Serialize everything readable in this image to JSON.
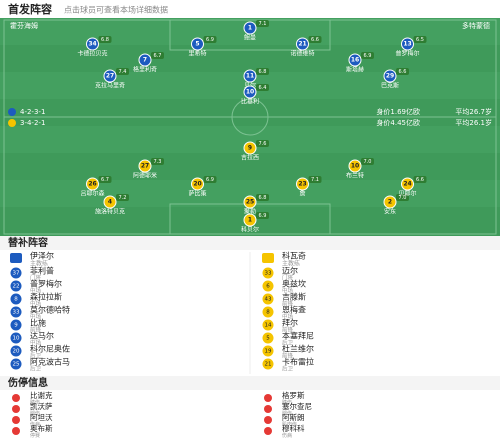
{
  "header": {
    "title": "首发阵容",
    "subtitle": "点击球员可查看本场详细数据"
  },
  "home": {
    "name": "霍芬海姆",
    "formation": "4-2-3-1",
    "value": "身价1.69亿欧",
    "age": "平均26.7岁",
    "rows": [
      [
        {
          "num": "1",
          "name": "鲍曼",
          "rating": "7.1"
        }
      ],
      [
        {
          "num": "34",
          "name": "卡德拉贝克",
          "rating": "6.8"
        },
        {
          "num": "5",
          "name": "里希特",
          "rating": "6.9"
        },
        {
          "num": "21",
          "name": "诺德维特",
          "rating": "6.6"
        },
        {
          "num": "13",
          "name": "普罗梅尔",
          "rating": "6.5"
        }
      ],
      [
        {
          "num": "7",
          "name": "格里利奇",
          "rating": "6.7"
        },
        {
          "num": "16",
          "name": "斯塔赫",
          "rating": "6.9"
        }
      ],
      [
        {
          "num": "27",
          "name": "克拉马里奇",
          "rating": "7.4"
        },
        {
          "num": "11",
          "name": "贝尔",
          "rating": "6.8"
        },
        {
          "num": "29",
          "name": "巴克斯",
          "rating": "6.6"
        }
      ],
      [
        {
          "num": "10",
          "name": "比基利",
          "rating": "6.4"
        }
      ]
    ],
    "coach_label": "主教练",
    "coach": "伊泽尔",
    "subs": [
      {
        "num": "37",
        "name": "菲利普",
        "pos": "门将"
      },
      {
        "num": "22",
        "name": "普罗梅尔",
        "pos": "中场"
      },
      {
        "num": "8",
        "name": "森拉拉斯",
        "pos": "中场"
      },
      {
        "num": "33",
        "name": "莫尔德哈特",
        "pos": "中场"
      },
      {
        "num": "9",
        "name": "比施",
        "pos": "前锋"
      },
      {
        "num": "10",
        "name": "达马尔",
        "pos": "中场"
      },
      {
        "num": "20",
        "name": "科尔尼奥佐",
        "pos": "后卫"
      },
      {
        "num": "25",
        "name": "阿克波古马",
        "pos": "后卫"
      }
    ],
    "injuries": [
      {
        "name": "比谢克",
        "reason": "膝伤"
      },
      {
        "name": "凯沃萨",
        "reason": "腿伤"
      },
      {
        "name": "阿坦沃",
        "reason": "伤病"
      },
      {
        "name": "奥布斯",
        "reason": "停赛"
      }
    ]
  },
  "away": {
    "name": "多特蒙德",
    "formation": "3-4-2-1",
    "value": "身价4.45亿欧",
    "age": "平均26.1岁",
    "rows": [
      [
        {
          "num": "1",
          "name": "科贝尔",
          "rating": "6.9"
        }
      ],
      [
        {
          "num": "4",
          "name": "施洛特贝克",
          "rating": "7.2"
        },
        {
          "num": "25",
          "name": "聚勒",
          "rating": "6.8"
        },
        {
          "num": "2",
          "name": "安东",
          "rating": "7.0"
        }
      ],
      [
        {
          "num": "26",
          "name": "吕耶尔森",
          "rating": "6.7"
        },
        {
          "num": "20",
          "name": "萨比策",
          "rating": "6.9"
        },
        {
          "num": "23",
          "name": "詹",
          "rating": "7.1"
        },
        {
          "num": "24",
          "name": "贝耶尔",
          "rating": "6.6"
        }
      ],
      [
        {
          "num": "27",
          "name": "阿德耶米",
          "rating": "7.3"
        },
        {
          "num": "10",
          "name": "布兰特",
          "rating": "7.0"
        }
      ],
      [
        {
          "num": "9",
          "name": "吉拉西",
          "rating": "7.6"
        }
      ]
    ],
    "coach_label": "主教练",
    "coach": "科瓦奇",
    "subs": [
      {
        "num": "33",
        "name": "迈尔",
        "pos": "门将"
      },
      {
        "num": "6",
        "name": "奥兹坎",
        "pos": "中场"
      },
      {
        "num": "43",
        "name": "吉滕斯",
        "pos": "前锋"
      },
      {
        "num": "8",
        "name": "恩梅查",
        "pos": "中场"
      },
      {
        "num": "14",
        "name": "拜尔",
        "pos": "前锋"
      },
      {
        "num": "5",
        "name": "本塞拜尼",
        "pos": "后卫"
      },
      {
        "num": "19",
        "name": "杜兰维尔",
        "pos": "前锋"
      },
      {
        "num": "21",
        "name": "卡布雷拉",
        "pos": "后卫"
      }
    ],
    "injuries": [
      {
        "name": "格罗斯",
        "reason": "膝伤"
      },
      {
        "name": "塞尔查尼",
        "reason": "腿伤"
      },
      {
        "name": "阿斯朗",
        "reason": "肌肉伤"
      },
      {
        "name": "穆科科",
        "reason": "伤病"
      }
    ]
  },
  "subs_title": "替补阵容",
  "injuries_title": "伤停信息"
}
